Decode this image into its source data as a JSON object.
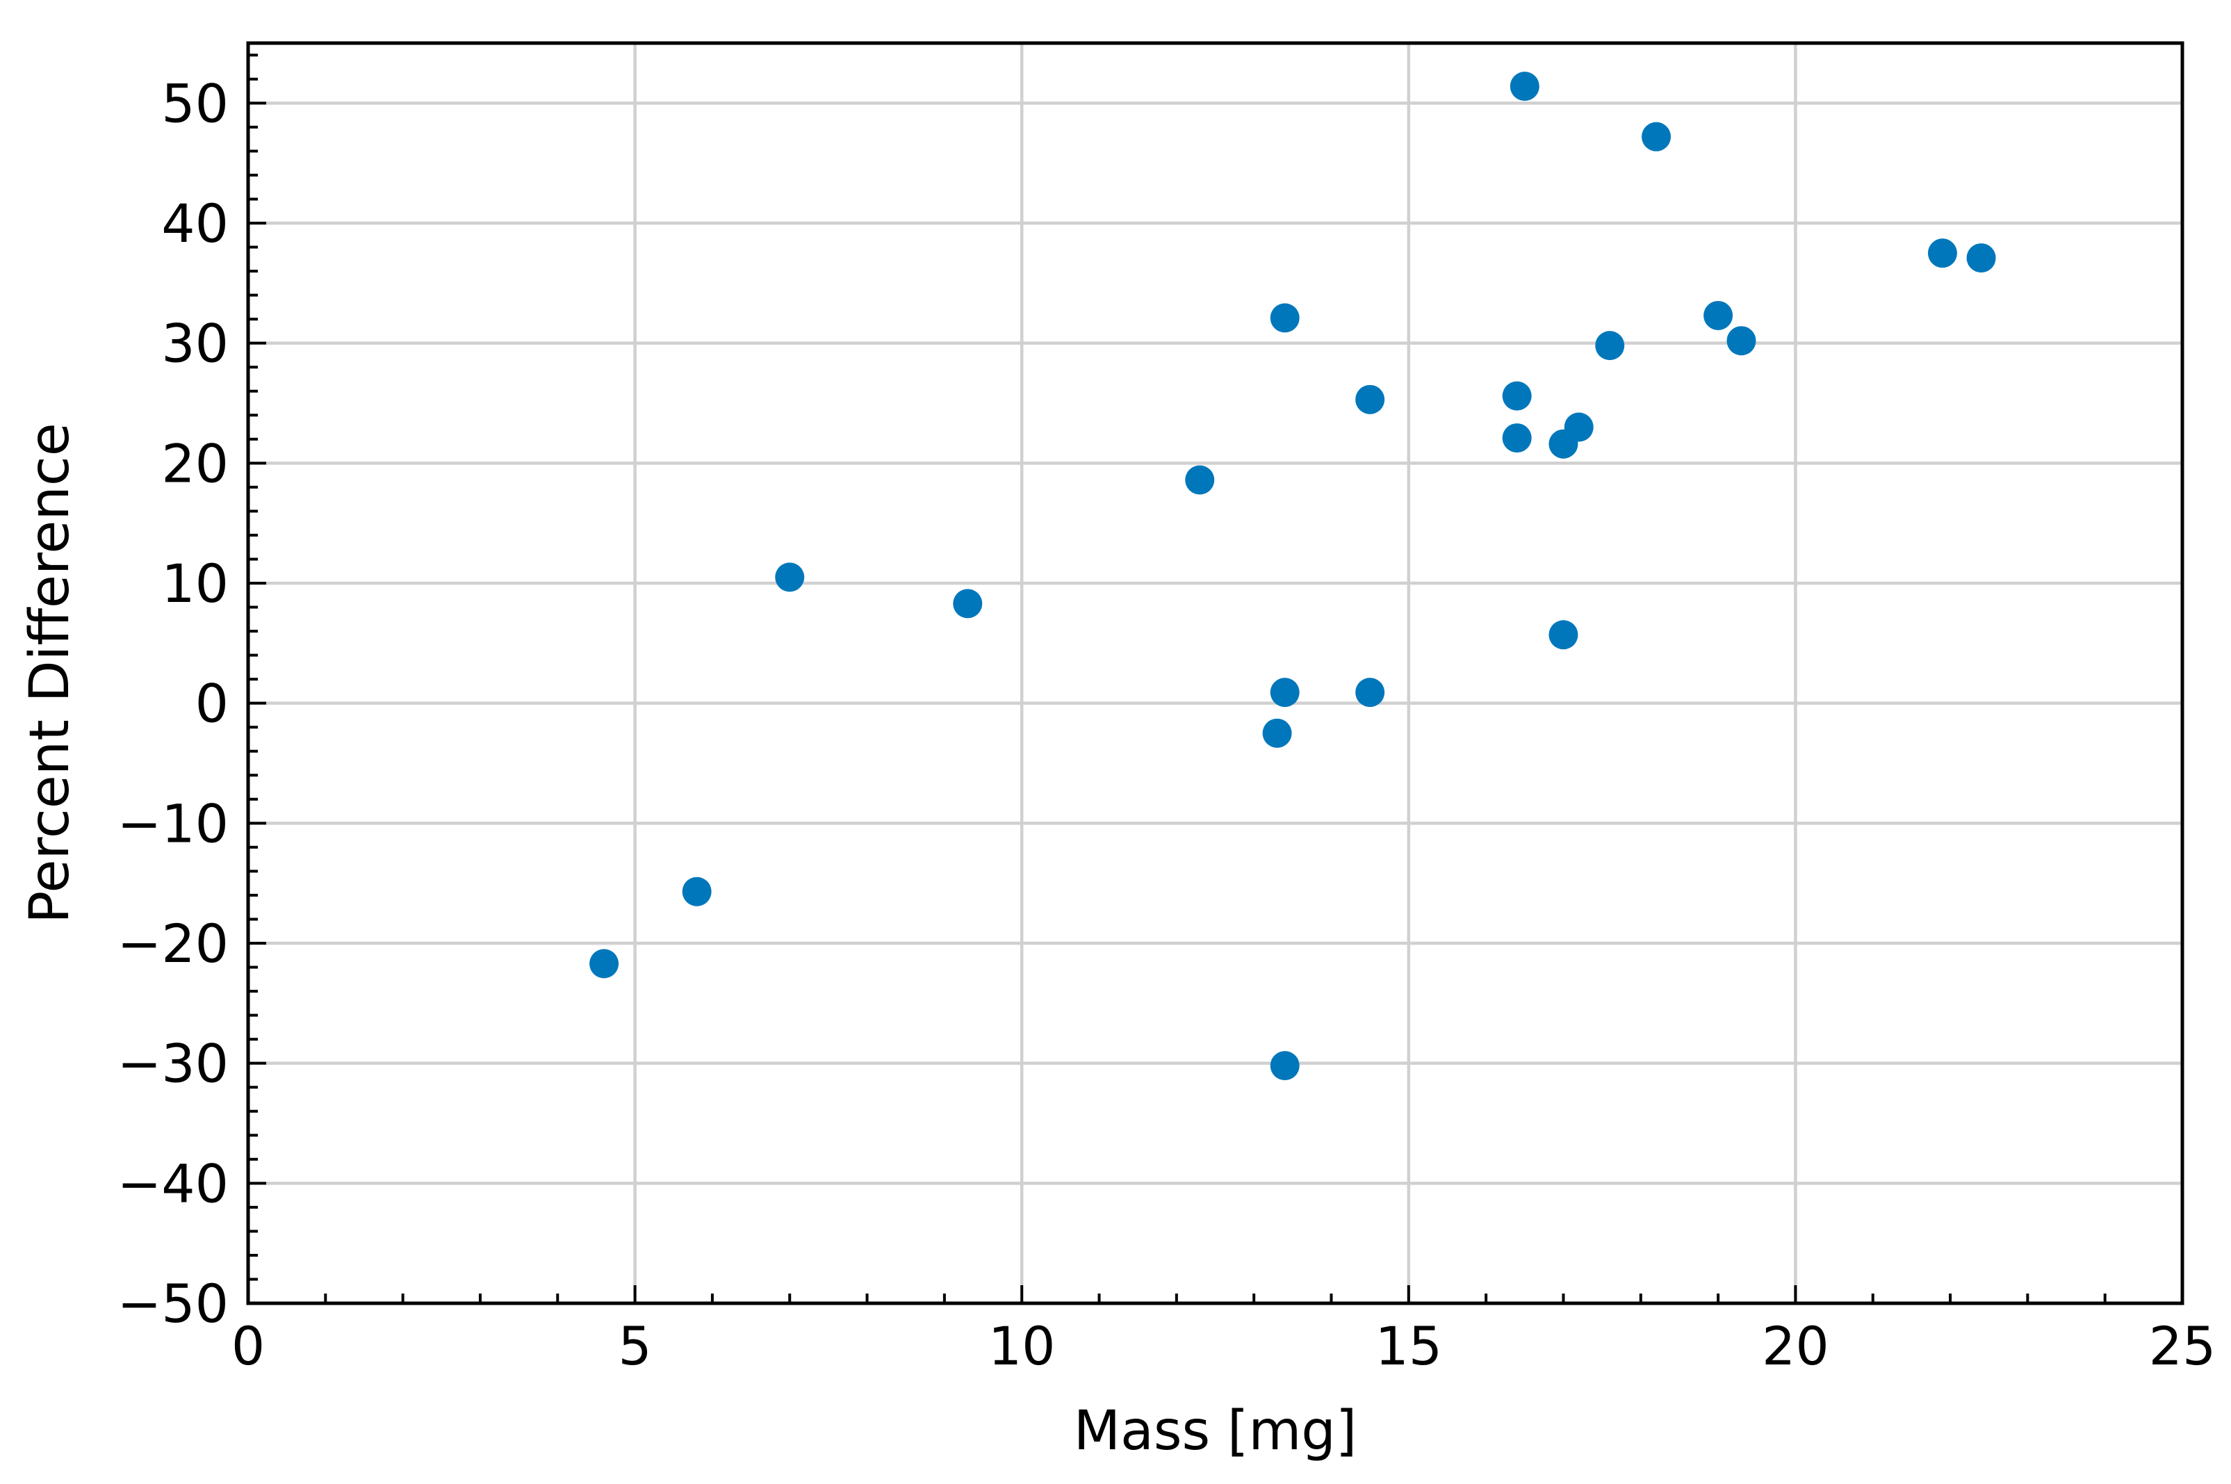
{
  "chart_data": {
    "type": "scatter",
    "xlabel": "Mass [mg]",
    "ylabel": "Percent Difference",
    "xlim": [
      0,
      25
    ],
    "ylim": [
      -50,
      55
    ],
    "x_ticks": [
      0,
      5,
      10,
      15,
      20,
      25
    ],
    "y_ticks": [
      -50,
      -40,
      -30,
      -20,
      -10,
      0,
      10,
      20,
      30,
      40,
      50
    ],
    "x_tick_labels": [
      "0",
      "5",
      "10",
      "15",
      "20",
      "25"
    ],
    "y_tick_labels": [
      "−50",
      "−40",
      "−30",
      "−20",
      "−10",
      "0",
      "10",
      "20",
      "30",
      "40",
      "50"
    ],
    "grid": true,
    "marker_color": "#0077bb",
    "series": [
      {
        "points": [
          {
            "x": 4.6,
            "y": -21.7
          },
          {
            "x": 5.8,
            "y": -15.7
          },
          {
            "x": 7.0,
            "y": 10.5
          },
          {
            "x": 9.3,
            "y": 8.3
          },
          {
            "x": 12.3,
            "y": 18.6
          },
          {
            "x": 13.3,
            "y": -2.5
          },
          {
            "x": 13.4,
            "y": 32.1
          },
          {
            "x": 13.4,
            "y": 0.9
          },
          {
            "x": 13.4,
            "y": -30.2
          },
          {
            "x": 14.5,
            "y": 25.3
          },
          {
            "x": 14.5,
            "y": 0.9
          },
          {
            "x": 16.4,
            "y": 25.6
          },
          {
            "x": 16.4,
            "y": 22.1
          },
          {
            "x": 16.5,
            "y": 51.4
          },
          {
            "x": 17.0,
            "y": 21.6
          },
          {
            "x": 17.0,
            "y": 5.7
          },
          {
            "x": 17.2,
            "y": 23.0
          },
          {
            "x": 17.6,
            "y": 29.8
          },
          {
            "x": 18.2,
            "y": 47.2
          },
          {
            "x": 19.0,
            "y": 32.3
          },
          {
            "x": 19.3,
            "y": 30.2
          },
          {
            "x": 21.9,
            "y": 37.5
          },
          {
            "x": 22.4,
            "y": 37.1
          }
        ]
      }
    ]
  }
}
